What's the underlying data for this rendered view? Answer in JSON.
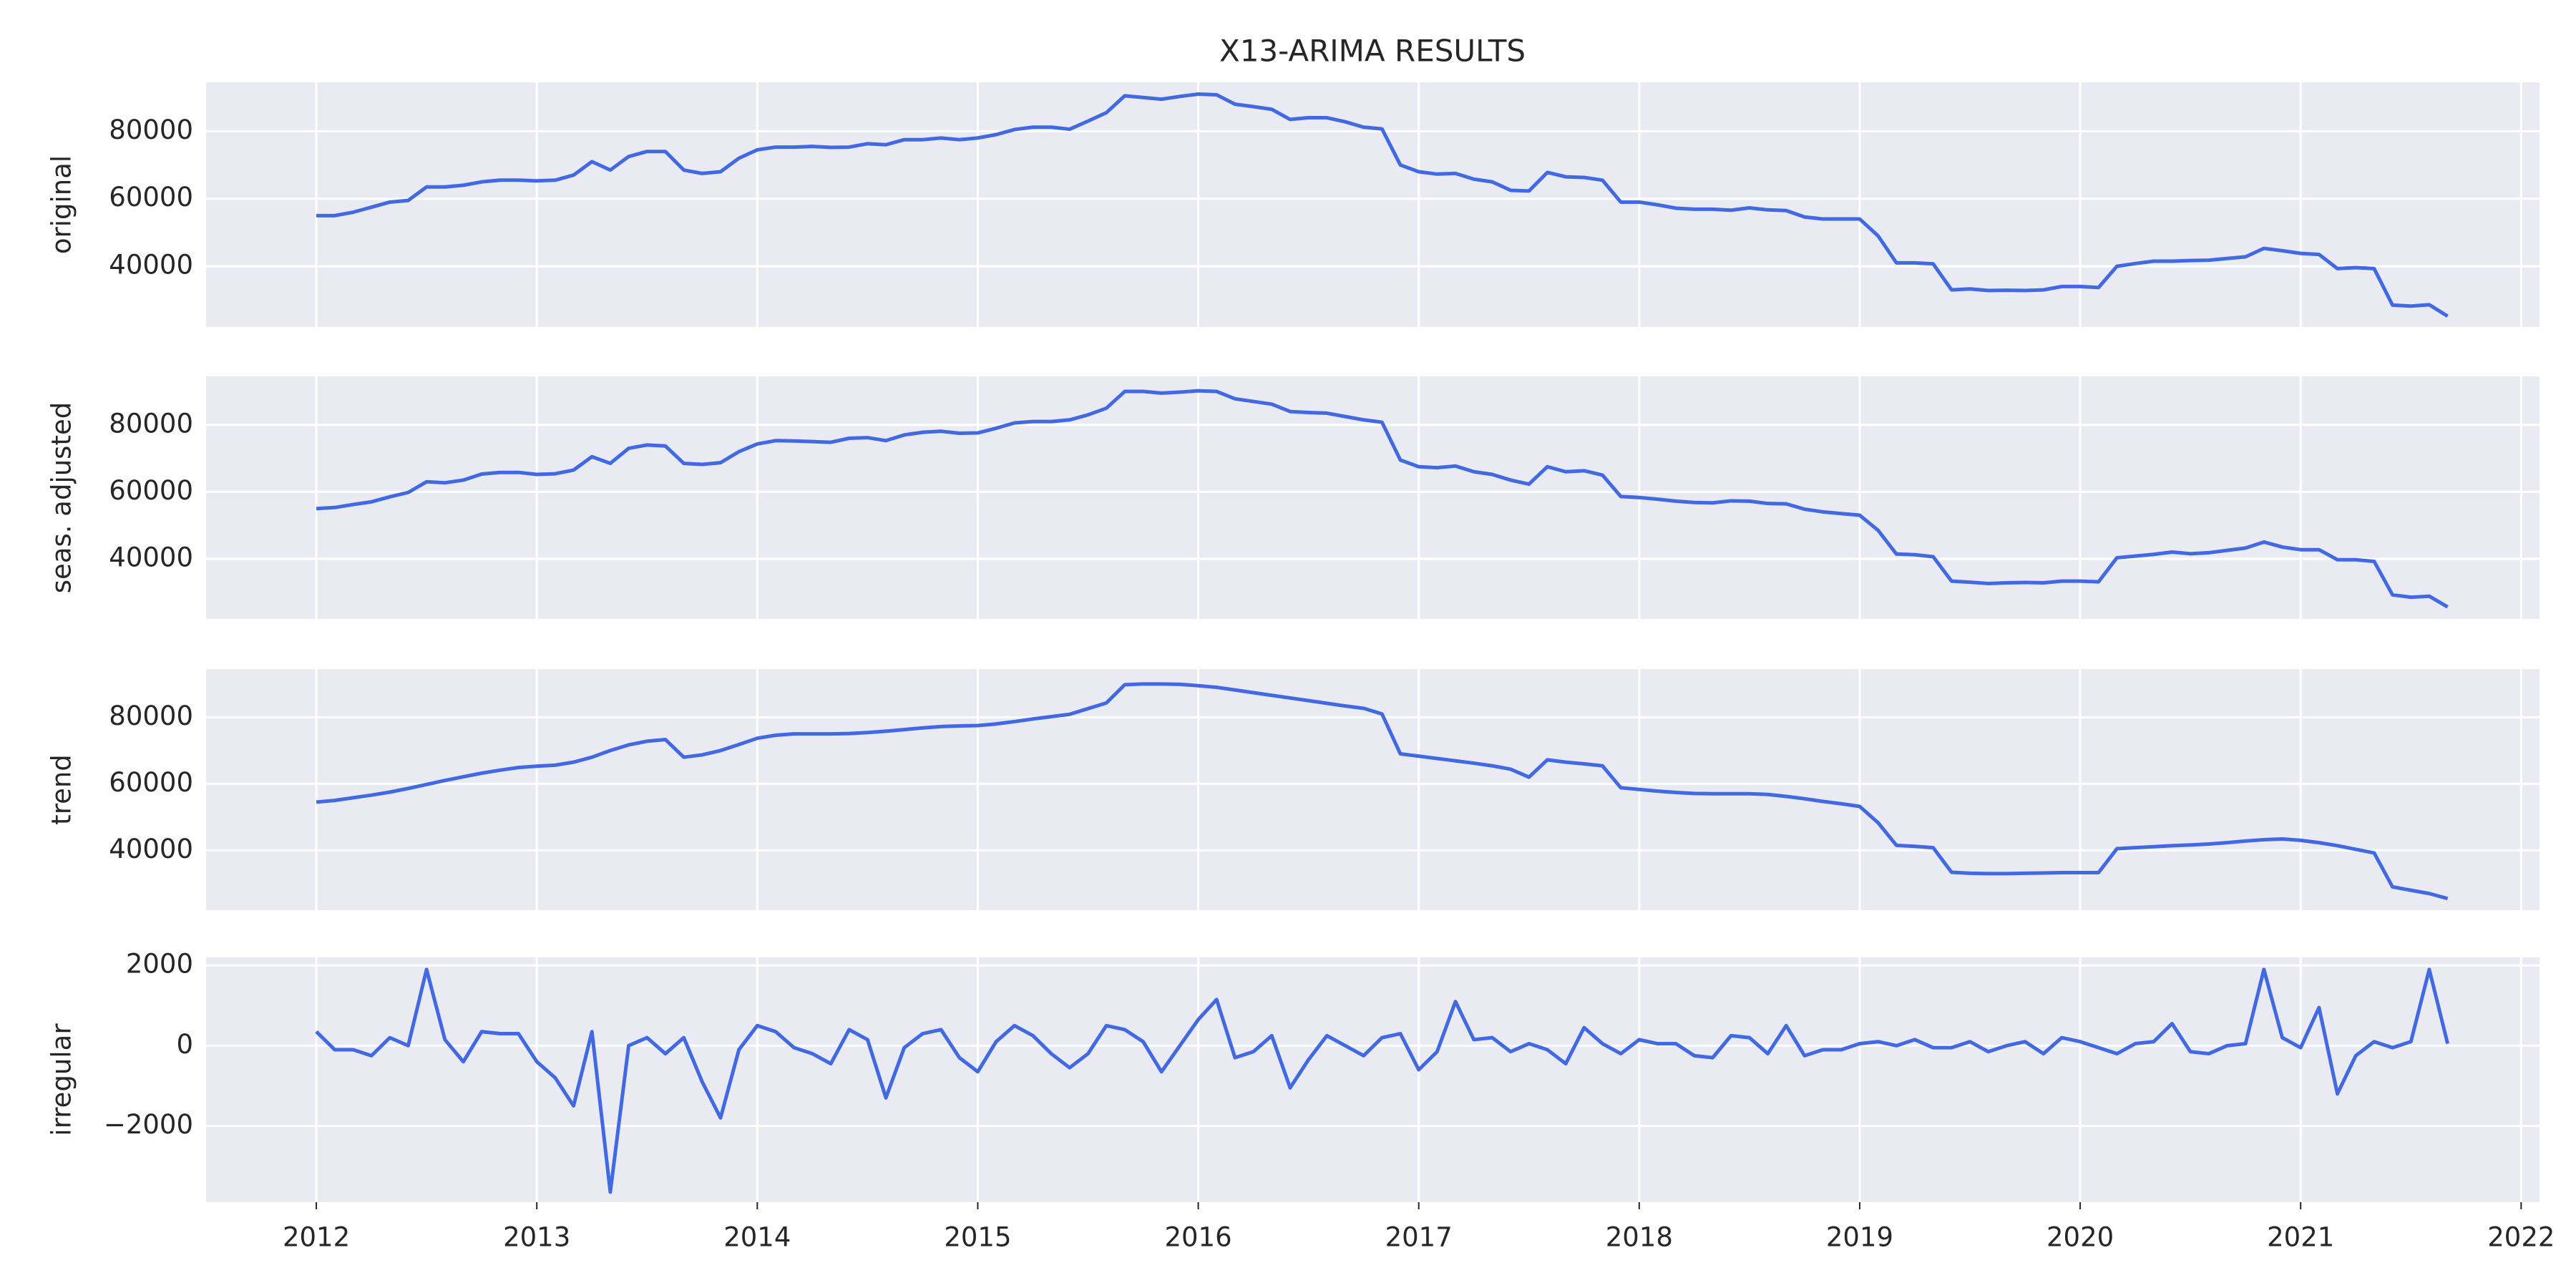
{
  "chart_data": {
    "type": "line",
    "title": "X13-ARIMA RESULTS",
    "grid": true,
    "color": "#4169e1",
    "x": [
      "2012-01",
      "2012-02",
      "2012-03",
      "2012-04",
      "2012-05",
      "2012-06",
      "2012-07",
      "2012-08",
      "2012-09",
      "2012-10",
      "2012-11",
      "2012-12",
      "2013-01",
      "2013-02",
      "2013-03",
      "2013-04",
      "2013-05",
      "2013-06",
      "2013-07",
      "2013-08",
      "2013-09",
      "2013-10",
      "2013-11",
      "2013-12",
      "2014-01",
      "2014-02",
      "2014-03",
      "2014-04",
      "2014-05",
      "2014-06",
      "2014-07",
      "2014-08",
      "2014-09",
      "2014-10",
      "2014-11",
      "2014-12",
      "2015-01",
      "2015-02",
      "2015-03",
      "2015-04",
      "2015-05",
      "2015-06",
      "2015-07",
      "2015-08",
      "2015-09",
      "2015-10",
      "2015-11",
      "2015-12",
      "2016-01",
      "2016-02",
      "2016-03",
      "2016-04",
      "2016-05",
      "2016-06",
      "2016-07",
      "2016-08",
      "2016-09",
      "2016-10",
      "2016-11",
      "2016-12",
      "2017-01",
      "2017-02",
      "2017-03",
      "2017-04",
      "2017-05",
      "2017-06",
      "2017-07",
      "2017-08",
      "2017-09",
      "2017-10",
      "2017-11",
      "2017-12",
      "2018-01",
      "2018-02",
      "2018-03",
      "2018-04",
      "2018-05",
      "2018-06",
      "2018-07",
      "2018-08",
      "2018-09",
      "2018-10",
      "2018-11",
      "2018-12",
      "2019-01",
      "2019-02",
      "2019-03",
      "2019-04",
      "2019-05",
      "2019-06",
      "2019-07",
      "2019-08",
      "2019-09",
      "2019-10",
      "2019-11",
      "2019-12",
      "2020-01",
      "2020-02",
      "2020-03",
      "2020-04",
      "2020-05",
      "2020-06",
      "2020-07",
      "2020-08",
      "2020-09",
      "2020-10",
      "2020-11",
      "2020-12",
      "2021-01",
      "2021-02",
      "2021-03",
      "2021-04",
      "2021-05",
      "2021-06",
      "2021-07",
      "2021-08",
      "2021-09"
    ],
    "xlim": [
      "2011-07",
      "2022-02"
    ],
    "xticks": [
      {
        "value": "2012-01",
        "label": "2012"
      },
      {
        "value": "2013-01",
        "label": "2013"
      },
      {
        "value": "2014-01",
        "label": "2014"
      },
      {
        "value": "2015-01",
        "label": "2015"
      },
      {
        "value": "2016-01",
        "label": "2016"
      },
      {
        "value": "2017-01",
        "label": "2017"
      },
      {
        "value": "2018-01",
        "label": "2018"
      },
      {
        "value": "2019-01",
        "label": "2019"
      },
      {
        "value": "2020-01",
        "label": "2020"
      },
      {
        "value": "2021-01",
        "label": "2021"
      },
      {
        "value": "2022-01",
        "label": "2022"
      }
    ],
    "panels": [
      {
        "ylabel": "original",
        "ylim": [
          22000,
          94500
        ],
        "yticks": [
          40000,
          60000,
          80000
        ],
        "values": [
          55000,
          55000,
          56000,
          57500,
          59000,
          59500,
          63500,
          63500,
          64000,
          65000,
          65500,
          65500,
          65300,
          65500,
          67000,
          71000,
          68500,
          72500,
          74000,
          74000,
          68500,
          67500,
          68000,
          72000,
          74500,
          75300,
          75300,
          75500,
          75200,
          75300,
          76300,
          76000,
          77500,
          77500,
          78000,
          77500,
          78000,
          79000,
          80500,
          81200,
          81200,
          80600,
          83000,
          85500,
          90500,
          90000,
          89500,
          90300,
          91000,
          90800,
          88000,
          87300,
          86500,
          83500,
          84000,
          84000,
          82800,
          81200,
          80700,
          70000,
          68000,
          67300,
          67500,
          65800,
          65000,
          62500,
          62300,
          67800,
          66500,
          66300,
          65500,
          59000,
          59000,
          58200,
          57200,
          56900,
          56900,
          56600,
          57300,
          56700,
          56500,
          54600,
          54000,
          54000,
          54000,
          49000,
          41000,
          41000,
          40700,
          33000,
          33300,
          32800,
          32900,
          32800,
          33000,
          34000,
          34000,
          33700,
          40000,
          40800,
          41500,
          41500,
          41700,
          41800,
          42300,
          42800,
          45300,
          44600,
          43800,
          43500,
          39300,
          39600,
          39300,
          28500,
          28200,
          28600,
          25200
        ]
      },
      {
        "ylabel": "seas. adjusted",
        "ylim": [
          22000,
          94500
        ],
        "yticks": [
          40000,
          60000,
          80000
        ],
        "values": [
          55000,
          55300,
          56200,
          57000,
          58500,
          59800,
          63000,
          62700,
          63500,
          65300,
          65800,
          65800,
          65200,
          65400,
          66500,
          70500,
          68500,
          73000,
          74000,
          73700,
          68500,
          68200,
          68700,
          72000,
          74300,
          75300,
          75200,
          75000,
          74800,
          76000,
          76200,
          75300,
          77000,
          77800,
          78100,
          77500,
          77600,
          79000,
          80600,
          81000,
          81000,
          81500,
          83000,
          85000,
          90000,
          90000,
          89500,
          89800,
          90200,
          90000,
          87800,
          87000,
          86200,
          84000,
          83700,
          83500,
          82500,
          81500,
          80800,
          69500,
          67500,
          67200,
          67700,
          66000,
          65200,
          63500,
          62300,
          67500,
          66000,
          66300,
          65000,
          58600,
          58300,
          57800,
          57200,
          56800,
          56700,
          57300,
          57200,
          56500,
          56400,
          54800,
          54000,
          53500,
          53000,
          48500,
          41400,
          41200,
          40600,
          33300,
          33000,
          32600,
          32800,
          32900,
          32800,
          33300,
          33300,
          33100,
          40300,
          40800,
          41300,
          42000,
          41500,
          41800,
          42500,
          43200,
          45000,
          43500,
          42700,
          42700,
          39700,
          39700,
          39200,
          29200,
          28500,
          28800,
          25600
        ]
      },
      {
        "ylabel": "trend",
        "ylim": [
          22000,
          94500
        ],
        "yticks": [
          40000,
          60000,
          80000
        ],
        "values": [
          54500,
          55000,
          55800,
          56600,
          57500,
          58600,
          59800,
          61000,
          62100,
          63200,
          64100,
          64900,
          65300,
          65600,
          66500,
          68000,
          70000,
          71700,
          72800,
          73300,
          68000,
          68700,
          70000,
          71800,
          73700,
          74600,
          75000,
          75000,
          75000,
          75100,
          75400,
          75800,
          76300,
          76800,
          77200,
          77400,
          77500,
          78000,
          78700,
          79500,
          80200,
          80900,
          82600,
          84300,
          89800,
          90000,
          90000,
          89900,
          89500,
          89000,
          88200,
          87400,
          86600,
          85800,
          85000,
          84200,
          83400,
          82700,
          81000,
          69000,
          68300,
          67600,
          66900,
          66200,
          65400,
          64400,
          62000,
          67200,
          66500,
          66000,
          65400,
          58800,
          58300,
          57800,
          57400,
          57100,
          57000,
          57000,
          57000,
          56800,
          56200,
          55500,
          54700,
          54000,
          53200,
          48300,
          41500,
          41200,
          40800,
          33400,
          33100,
          33000,
          33000,
          33100,
          33200,
          33300,
          33300,
          33300,
          40500,
          40800,
          41100,
          41400,
          41600,
          41900,
          42300,
          42800,
          43200,
          43400,
          43000,
          42300,
          41400,
          40300,
          39200,
          29000,
          28000,
          27000,
          25500
        ]
      },
      {
        "ylabel": "irregular",
        "ylim": [
          -3900,
          2200
        ],
        "yticks": [
          {
            "value": -2000,
            "label": "−2000"
          },
          0,
          2000
        ],
        "values": [
          350,
          -100,
          -100,
          -250,
          200,
          0,
          1900,
          150,
          -400,
          350,
          300,
          300,
          -400,
          -800,
          -1500,
          350,
          -3650,
          0,
          200,
          -200,
          200,
          -900,
          -1800,
          -100,
          500,
          350,
          -50,
          -200,
          -450,
          400,
          150,
          -1300,
          -50,
          300,
          400,
          -300,
          -650,
          100,
          500,
          250,
          -200,
          -550,
          -200,
          500,
          400,
          100,
          -650,
          0,
          650,
          1150,
          -300,
          -150,
          250,
          -1050,
          -350,
          250,
          0,
          -250,
          200,
          300,
          -600,
          -150,
          1100,
          150,
          200,
          -150,
          50,
          -100,
          -450,
          450,
          50,
          -200,
          150,
          50,
          50,
          -250,
          -300,
          250,
          200,
          -200,
          500,
          -250,
          -100,
          -100,
          50,
          100,
          0,
          150,
          -50,
          -50,
          100,
          -150,
          0,
          100,
          -200,
          200,
          100,
          -50,
          -200,
          50,
          100,
          550,
          -150,
          -200,
          0,
          50,
          1900,
          200,
          -50,
          950,
          -1200,
          -250,
          100,
          -50,
          100,
          1900,
          50
        ]
      }
    ]
  }
}
